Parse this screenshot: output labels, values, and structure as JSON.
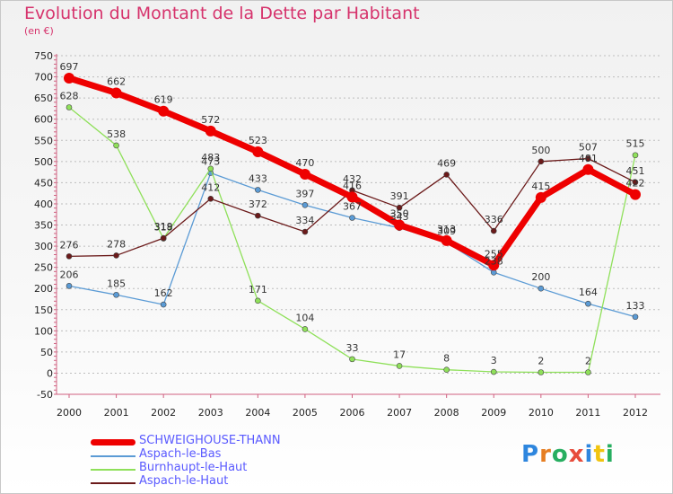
{
  "header": {
    "title": "Evolution du Montant de la Dette par Habitant",
    "subtitle": "(en €)"
  },
  "logo": {
    "letters": [
      "P",
      "r",
      "o",
      "x",
      "i",
      "t",
      "i"
    ],
    "colors": [
      "#2e86de",
      "#e67e22",
      "#27ae60",
      "#e74c3c",
      "#2e86de",
      "#f1c40f",
      "#27ae60"
    ]
  },
  "chart_data": {
    "type": "line",
    "title": "Evolution du Montant de la Dette par Habitant",
    "subtitle": "(en €)",
    "x": [
      2000,
      2001,
      2002,
      2003,
      2004,
      2005,
      2006,
      2007,
      2008,
      2009,
      2010,
      2011,
      2012
    ],
    "ylim": [
      -50,
      750
    ],
    "yticks": [
      -50,
      0,
      50,
      100,
      150,
      200,
      250,
      300,
      350,
      400,
      450,
      500,
      550,
      600,
      650,
      700,
      750
    ],
    "grid": "horizontal dashed",
    "legend_position": "bottom-left",
    "series": [
      {
        "name": "SCHWEIGHOUSE-THANN",
        "color": "#ee0000",
        "bold": true,
        "values": [
          697,
          662,
          619,
          572,
          523,
          470,
          416,
          350,
          313,
          255,
          415,
          481,
          422
        ]
      },
      {
        "name": "Aspach-le-Bas",
        "color": "#5b9bd5",
        "bold": false,
        "values": [
          206,
          185,
          162,
          473,
          433,
          397,
          367,
          343,
          309,
          238,
          200,
          164,
          133
        ]
      },
      {
        "name": "Burnhaupt-le-Haut",
        "color": "#8fe05a",
        "bold": false,
        "values": [
          628,
          538,
          318,
          483,
          171,
          104,
          33,
          17,
          8,
          3,
          2,
          2,
          515
        ]
      },
      {
        "name": "Aspach-le-Haut",
        "color": "#6b1a1a",
        "bold": false,
        "values": [
          276,
          278,
          319,
          412,
          372,
          334,
          432,
          391,
          469,
          336,
          500,
          507,
          451
        ]
      }
    ]
  }
}
